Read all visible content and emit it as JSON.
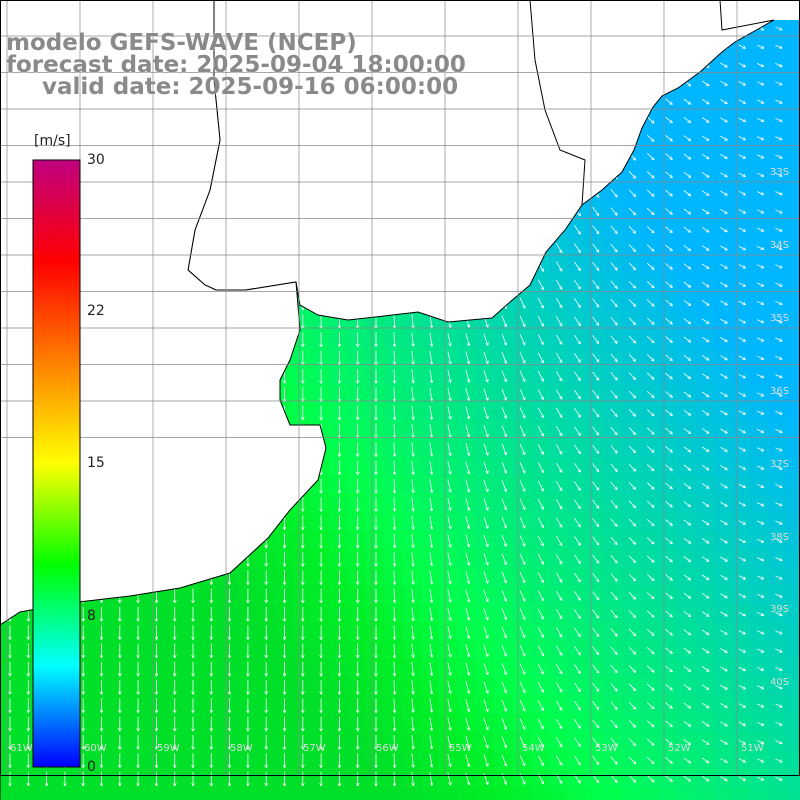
{
  "title": {
    "model": "modelo GEFS-WAVE (NCEP)",
    "forecast": "forecast date: 2025-09-04 18:00:00",
    "valid": "valid date: 2025-09-16 06:00:00"
  },
  "colorbar": {
    "unit": "[m/s]",
    "ticks": [
      "30",
      "22",
      "15",
      "8",
      "0"
    ],
    "stops": [
      "#0000ff",
      "#00ffff",
      "#00ff00",
      "#ffff00",
      "#ff8000",
      "#ff0000",
      "#c00080"
    ]
  },
  "map": {
    "lat_labels": [
      "33S",
      "34S",
      "35S",
      "36S",
      "37S",
      "38S",
      "39S",
      "40S"
    ],
    "lon_labels": [
      "61W",
      "60W",
      "59W",
      "58W",
      "57W",
      "56W",
      "55W",
      "54W",
      "53W",
      "52W",
      "51W"
    ],
    "land_color": "#ffffff",
    "coast_color": "#000000",
    "grid_color": "#888888",
    "arrow_color": "#ffffff"
  }
}
